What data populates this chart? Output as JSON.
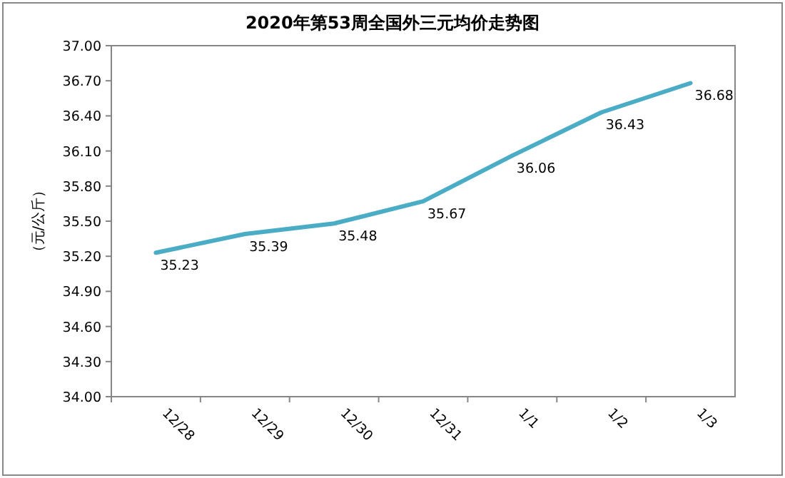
{
  "chart_data": {
    "type": "line",
    "title": "2020年第53周全国外三元均价走势图",
    "ylabel": "（元/公斤）",
    "categories": [
      "12/28",
      "12/29",
      "12/30",
      "12/31",
      "1/1",
      "1/2",
      "1/3"
    ],
    "series": [
      {
        "color": "#4bacc6",
        "values": [
          35.23,
          35.39,
          35.48,
          35.67,
          36.06,
          36.43,
          36.68
        ]
      }
    ],
    "ylim": [
      34,
      37
    ],
    "yticks": [
      {
        "value": 34,
        "label": "34.00"
      },
      {
        "value": 34.3,
        "label": "34.30"
      },
      {
        "value": 34.6,
        "label": "34.60"
      },
      {
        "value": 34.9,
        "label": "34.90"
      },
      {
        "value": 35.2,
        "label": "35.20"
      },
      {
        "value": 35.5,
        "label": "35.50"
      },
      {
        "value": 35.8,
        "label": "35.80"
      },
      {
        "value": 36.1,
        "label": "36.10"
      },
      {
        "value": 36.4,
        "label": "36.40"
      },
      {
        "value": 36.7,
        "label": "36.70"
      },
      {
        "value": 37,
        "label": "37.00"
      }
    ],
    "grid": false,
    "marker": "none",
    "data_labels": true
  }
}
